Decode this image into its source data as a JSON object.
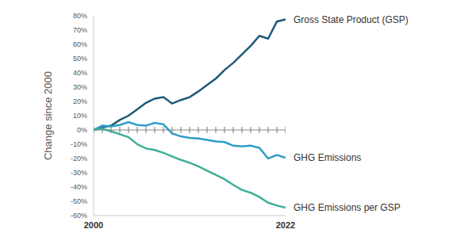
{
  "chart_data": {
    "type": "line",
    "y_label": "Change since 2000",
    "x": [
      2000,
      2001,
      2002,
      2003,
      2004,
      2005,
      2006,
      2007,
      2008,
      2009,
      2010,
      2011,
      2012,
      2013,
      2014,
      2015,
      2016,
      2017,
      2018,
      2019,
      2020,
      2021,
      2022
    ],
    "xlim": [
      2000,
      2022
    ],
    "xticks": [
      2000,
      2022
    ],
    "ylim": [
      -60,
      80
    ],
    "yticks": [
      {
        "value": -60,
        "label": "-60%"
      },
      {
        "value": -50,
        "label": "-50%"
      },
      {
        "value": -40,
        "label": "-40%"
      },
      {
        "value": -30,
        "label": "-30%"
      },
      {
        "value": -20,
        "label": "-20%"
      },
      {
        "value": -10,
        "label": "-10%"
      },
      {
        "value": 0,
        "label": "0%"
      },
      {
        "value": 10,
        "label": "10%"
      },
      {
        "value": 20,
        "label": "20%"
      },
      {
        "value": 30,
        "label": "30%"
      },
      {
        "value": 40,
        "label": "40%"
      },
      {
        "value": 50,
        "label": "50%"
      },
      {
        "value": 60,
        "label": "60%"
      },
      {
        "value": 70,
        "label": "70%"
      },
      {
        "value": 80,
        "label": "80%"
      }
    ],
    "grid": false,
    "series": [
      {
        "name": "Gross State Product (GSP)",
        "color": "#1c5a7a",
        "values": [
          0,
          2,
          3,
          7,
          10,
          14.5,
          19,
          22,
          23,
          18.5,
          21,
          23,
          27,
          31.5,
          36,
          42,
          47,
          53,
          59,
          66,
          64,
          76,
          77.5
        ]
      },
      {
        "name": "GHG Emissions",
        "color": "#2e9cc8",
        "values": [
          0,
          3,
          2.5,
          3.5,
          5.5,
          3.5,
          3,
          5,
          4,
          -2.5,
          -4.5,
          -5.5,
          -6,
          -7,
          -8,
          -8.5,
          -11,
          -11.5,
          -11,
          -12.5,
          -20,
          -17.5,
          -19.5
        ]
      },
      {
        "name": "GHG Emissions per GSP",
        "color": "#3fae9a",
        "values": [
          0,
          1,
          -1,
          -3,
          -5,
          -10,
          -13,
          -14,
          -16,
          -18.5,
          -21,
          -23,
          -25.5,
          -28.5,
          -31.5,
          -34.5,
          -38.5,
          -42,
          -44,
          -47,
          -51,
          -53,
          -54.5
        ]
      }
    ]
  }
}
